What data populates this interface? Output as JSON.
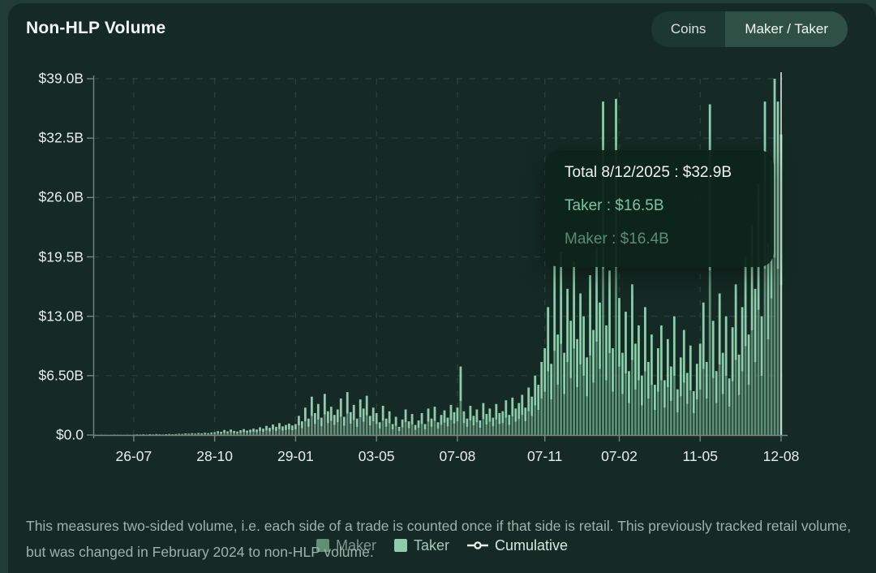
{
  "header": {
    "title": "Non-HLP Volume",
    "toggle": {
      "coins_label": "Coins",
      "maker_taker_label": "Maker / Taker",
      "selected": "Maker / Taker"
    }
  },
  "tooltip": {
    "title": "Total 8/12/2025 : $32.9B",
    "rows": [
      {
        "name": "taker",
        "text": "Taker : $16.5B"
      },
      {
        "name": "maker",
        "text": "Maker : $16.4B"
      }
    ]
  },
  "legend": {
    "items": [
      {
        "name": "maker",
        "label": "Maker",
        "swatch_color": "#5f8f77",
        "text_color": "#7c968b",
        "type": "square"
      },
      {
        "name": "taker",
        "label": "Taker",
        "swatch_color": "#8fcbac",
        "text_color": "#a9c7b7",
        "type": "square"
      },
      {
        "name": "cumulative",
        "label": "Cumulative",
        "swatch_color": "#e9f3ec",
        "text_color": "#d7eade",
        "type": "line"
      }
    ]
  },
  "footer_note": "This measures two-sided volume, i.e. each side of a trade is counted once if that side is retail. This previously tracked retail volume, but was changed in February 2024 to non-HLP volume.",
  "chart_data": {
    "type": "bar",
    "title": "Non-HLP Volume",
    "stacked": true,
    "unit": "$B",
    "ylim": [
      0,
      39
    ],
    "grid": "dashed",
    "legend_position": "bottom",
    "y_ticks": {
      "values": [
        0,
        6.5,
        13.0,
        19.5,
        26.0,
        32.5,
        39.0
      ],
      "labels": [
        "$0.0",
        "$6.50B",
        "$13.0B",
        "$19.5B",
        "$26.0B",
        "$32.5B",
        "$39.0B"
      ]
    },
    "x_ticks": {
      "labels": [
        "26-07",
        "28-10",
        "29-01",
        "03-05",
        "07-08",
        "07-11",
        "07-02",
        "11-05",
        "12-08"
      ],
      "bar_indices": [
        12,
        37,
        62,
        87,
        112,
        139,
        162,
        187,
        212
      ]
    },
    "series_split": {
      "maker_fraction": 0.498,
      "taker_fraction": 0.502
    },
    "colors": {
      "maker": "#5f8f77",
      "taker": "#8fcbac",
      "axis": "#76847e",
      "gridline": "rgba(200,222,212,0.12)",
      "crosshair": "#dfe5e1"
    },
    "hover": {
      "bar_index": 212,
      "date": "8/12/2025",
      "total": 32.9,
      "taker": 16.5,
      "maker": 16.4
    },
    "values": [
      0.03,
      0.02,
      0.04,
      0.03,
      0.02,
      0.03,
      0.05,
      0.04,
      0.03,
      0.02,
      0.04,
      0.03,
      0.05,
      0.07,
      0.06,
      0.08,
      0.05,
      0.09,
      0.07,
      0.1,
      0.08,
      0.06,
      0.09,
      0.11,
      0.08,
      0.1,
      0.14,
      0.12,
      0.18,
      0.15,
      0.2,
      0.16,
      0.22,
      0.18,
      0.25,
      0.2,
      0.28,
      0.3,
      0.42,
      0.35,
      0.55,
      0.4,
      0.6,
      0.45,
      0.38,
      0.52,
      0.65,
      0.48,
      0.58,
      0.7,
      0.6,
      0.85,
      0.7,
      1.0,
      0.8,
      1.15,
      0.9,
      1.3,
      0.95,
      1.1,
      1.25,
      1.05,
      1.2,
      2.1,
      1.5,
      3.0,
      1.8,
      4.2,
      2.4,
      3.4,
      1.9,
      4.5,
      2.6,
      3.1,
      2.2,
      2.8,
      4.0,
      2.0,
      4.7,
      2.5,
      3.3,
      1.8,
      3.9,
      2.9,
      4.3,
      2.1,
      3.0,
      2.4,
      1.4,
      3.2,
      1.8,
      2.6,
      1.2,
      2.0,
      0.9,
      1.7,
      2.8,
      1.5,
      2.3,
      1.1,
      1.6,
      2.4,
      1.2,
      2.9,
      1.8,
      3.1,
      1.4,
      2.2,
      2.7,
      1.9,
      3.3,
      2.5,
      3.0,
      7.5,
      2.6,
      1.8,
      3.2,
      2.1,
      2.8,
      1.6,
      3.5,
      2.3,
      2.9,
      1.9,
      3.4,
      2.4,
      2.6,
      3.8,
      2.2,
      4.1,
      2.9,
      3.5,
      4.4,
      3.0,
      5.2,
      4.2,
      6.5,
      5.5,
      8.0,
      9.5,
      14.0,
      7.8,
      18.5,
      11.0,
      20.0,
      9.0,
      16.0,
      12.5,
      19.0,
      10.5,
      15.5,
      13.0,
      8.5,
      17.5,
      11.5,
      20.5,
      14.5,
      36.5,
      12.0,
      18.0,
      9.5,
      36.8,
      15.0,
      9.0,
      13.5,
      7.0,
      16.5,
      10.0,
      12.0,
      6.5,
      14.0,
      8.0,
      11.0,
      5.5,
      9.5,
      12.0,
      6.0,
      10.5,
      7.5,
      13.0,
      5.0,
      8.5,
      11.5,
      6.8,
      9.8,
      4.8,
      7.8,
      10.0,
      14.5,
      8.0,
      36.2,
      12.5,
      7.0,
      15.5,
      9.0,
      13.0,
      6.2,
      11.8,
      16.5,
      8.8,
      14.0,
      19.5,
      11.0,
      23.0,
      16.0,
      27.5,
      13.0,
      36.5,
      21.0,
      30.0,
      39.0,
      36.5,
      32.9
    ]
  }
}
